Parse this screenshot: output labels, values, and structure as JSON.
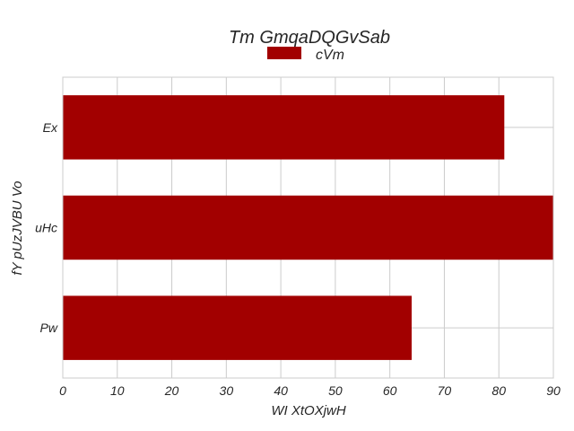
{
  "chart_data": {
    "type": "bar",
    "orientation": "horizontal",
    "title": "Tm GmqaDQGvSab",
    "xlabel": "WI  XtOXjwH",
    "ylabel": "fY  pUzJVBU Vo",
    "categories": [
      "Ex",
      "uHc",
      "Pw"
    ],
    "series": [
      {
        "name": "cVm",
        "values": [
          81,
          90,
          64
        ],
        "color": "#a20000"
      }
    ],
    "xlim": [
      0,
      90
    ],
    "xticks": [
      0,
      10,
      20,
      30,
      40,
      50,
      60,
      70,
      80,
      90
    ],
    "grid": true,
    "legend_position": "top-center"
  }
}
